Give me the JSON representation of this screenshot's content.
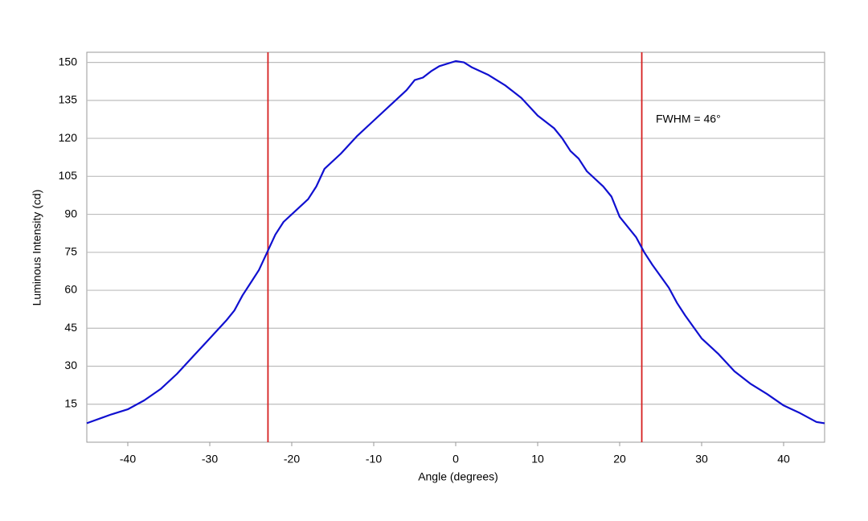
{
  "chart_data": {
    "type": "line",
    "x_label": "Angle (degrees)",
    "y_label": "Luminous Intensity (cd)",
    "annotation": "FWHM = 46°",
    "x": [
      -45,
      -42,
      -40,
      -38,
      -36,
      -34,
      -32,
      -30,
      -28,
      -27,
      -26,
      -25,
      -24,
      -23,
      -22,
      -21,
      -20,
      -18,
      -17,
      -16,
      -14,
      -12,
      -10,
      -8,
      -6,
      -5,
      -4,
      -3,
      -2,
      0,
      1,
      2,
      4,
      6,
      8,
      10,
      12,
      13,
      14,
      15,
      16,
      18,
      19,
      20,
      21,
      22,
      23,
      24,
      26,
      27,
      28,
      30,
      32,
      34,
      36,
      38,
      40,
      42,
      44,
      45
    ],
    "values": [
      7.5,
      11,
      13,
      16.5,
      21,
      27,
      34,
      41,
      48,
      52,
      58,
      63,
      68,
      75,
      82,
      87,
      90,
      96,
      101,
      108,
      114,
      121,
      127,
      133,
      139,
      143,
      144,
      146.5,
      148.5,
      150.5,
      150,
      148,
      145,
      141,
      136,
      129,
      124,
      120,
      115,
      112,
      107,
      101,
      97,
      89,
      85,
      81,
      75,
      70,
      61,
      55,
      50,
      41,
      35,
      28,
      23,
      19,
      14.5,
      11.5,
      8,
      7.5
    ],
    "color": "#1010d0",
    "vlines": {
      "x": [
        -22.9,
        22.7
      ],
      "color": "#d62020"
    },
    "xlim": [
      -45,
      45
    ],
    "xticks": [
      -40,
      -30,
      -20,
      -10,
      0,
      10,
      20,
      30,
      40
    ],
    "ylim": [
      0,
      154
    ],
    "yticks": [
      15,
      30,
      45,
      60,
      75,
      90,
      105,
      120,
      135,
      150
    ],
    "grid": true
  }
}
